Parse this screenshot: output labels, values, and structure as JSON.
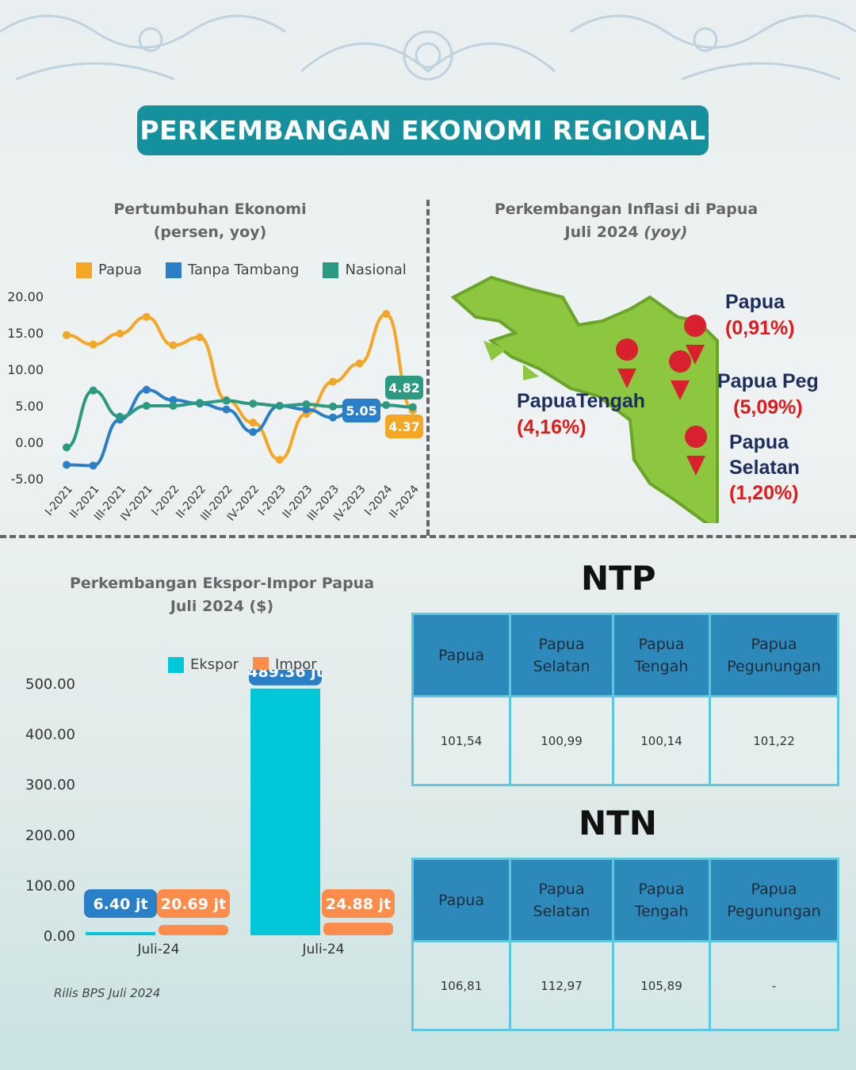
{
  "title": "PERKEMBANGAN EKONOMI REGIONAL",
  "growth": {
    "title1": "Pertumbuhan Ekonomi",
    "title2": "(persen, yoy)"
  },
  "inflation": {
    "title1": "Perkembangan Inflasi di Papua",
    "title2": "Juli 2024",
    "title2_em": "(yoy)",
    "regions": [
      {
        "name": "Papua",
        "value": "(0,91%)"
      },
      {
        "name": "Papua Peg",
        "value": "(5,09%)"
      },
      {
        "name": "PapuaTengah",
        "value": "(4,16%)"
      },
      {
        "name": "Papua",
        "name2": "Selatan",
        "value": "(1,20%)"
      }
    ]
  },
  "trade": {
    "title1": "Perkembangan Ekspor-Impor Papua",
    "title2": "Juli 2024 ($)"
  },
  "ntp": {
    "title": "NTP",
    "headers": [
      [
        "Papua"
      ],
      [
        "Papua",
        "Selatan"
      ],
      [
        "Papua",
        "Tengah"
      ],
      [
        "Papua",
        "Pegunungan"
      ]
    ],
    "values": [
      "101,54",
      "100,99",
      "100,14",
      "101,22"
    ]
  },
  "ntn": {
    "title": "NTN",
    "headers": [
      [
        "Papua"
      ],
      [
        "Papua",
        "Selatan"
      ],
      [
        "Papua",
        "Tengah"
      ],
      [
        "Papua",
        "Pegunungan"
      ]
    ],
    "values": [
      "106,81",
      "112,97",
      "105,89",
      "-"
    ]
  },
  "source": "Rilis BPS Juli 2024",
  "colors": {
    "papua": "#f5a623",
    "tanpa": "#2a7fc9",
    "nasional": "#2a9a80",
    "ekspor": "#00c8d8",
    "impor": "#fb8c4a",
    "title": "#15909d"
  },
  "chart_data": [
    {
      "type": "line",
      "title": "Pertumbuhan Ekonomi (persen, yoy)",
      "categories": [
        "I-2021",
        "II-2021",
        "III-2021",
        "IV-2021",
        "I-2022",
        "II-2022",
        "III-2022",
        "IV-2022",
        "I-2023",
        "II-2023",
        "III-2023",
        "IV-2023",
        "I-2024",
        "II-2024"
      ],
      "yticks": [
        "20.00",
        "15.00",
        "10.00",
        "5.00",
        "0.00",
        "-5.00"
      ],
      "ylim": [
        -5,
        20
      ],
      "series": [
        {
          "name": "Papua",
          "color": "#f5a623",
          "values": [
            14.7,
            13.4,
            14.9,
            17.2,
            13.3,
            14.4,
            5.8,
            2.7,
            -2.4,
            3.9,
            8.3,
            10.8,
            17.6,
            4.37
          ],
          "label": "4.37"
        },
        {
          "name": "Tanpa Tambang",
          "color": "#2a7fc9",
          "values": [
            -3.1,
            -3.2,
            3.1,
            7.2,
            5.8,
            5.3,
            4.5,
            1.4,
            5.0,
            4.5,
            3.4,
            5.05,
            null,
            null
          ],
          "label": "5.05"
        },
        {
          "name": "Nasional",
          "color": "#2a9a80",
          "values": [
            -0.7,
            7.1,
            3.5,
            5.0,
            5.0,
            5.4,
            5.7,
            5.3,
            5.0,
            5.2,
            4.9,
            5.0,
            5.1,
            4.82
          ],
          "label": "4.82"
        }
      ],
      "legend": "top"
    },
    {
      "type": "bar",
      "title": "Perkembangan Ekspor-Impor Papua Juli 2024 ($)",
      "categories": [
        "Juli-24",
        "Juli-24"
      ],
      "yticks": [
        "500.00",
        "400.00",
        "300.00",
        "200.00",
        "100.00",
        "0.00"
      ],
      "ylim": [
        0,
        500
      ],
      "series": [
        {
          "name": "Ekspor",
          "color": "#00c8d8",
          "values": [
            6.4,
            489.36
          ],
          "labels": [
            "6.40  jt",
            "489.36 jt"
          ]
        },
        {
          "name": "Impor",
          "color": "#fb8c4a",
          "values": [
            20.69,
            24.88
          ],
          "labels": [
            "20.69 jt",
            "24.88 jt"
          ]
        }
      ],
      "legend": "top"
    }
  ]
}
